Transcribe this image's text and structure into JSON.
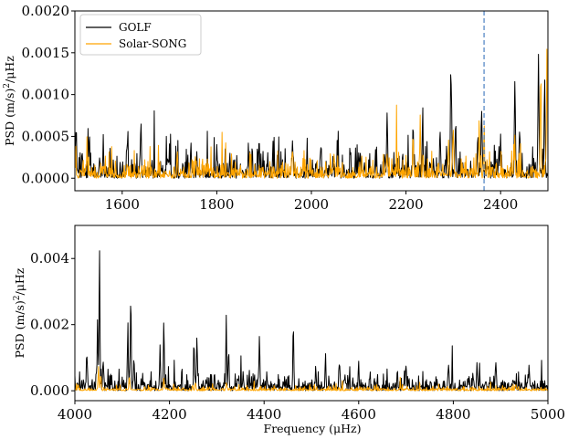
{
  "chart_data": [
    {
      "type": "line",
      "panel": "top",
      "xlabel": "",
      "ylabel": "PSD (m/s)²/μHz",
      "ylabel_parts": {
        "prefix": "PSD (m/s)",
        "sup": "2",
        "suffix": "/μHz"
      },
      "xlim": [
        1500,
        2500
      ],
      "ylim": [
        -0.00015,
        0.002
      ],
      "xticks": [
        1600,
        1800,
        2000,
        2200,
        2400
      ],
      "yticks": [
        0.0,
        0.0005,
        0.001,
        0.0015,
        0.002
      ],
      "ytick_labels": [
        "0.0000",
        "0.0005",
        "0.0010",
        "0.0015",
        "0.0020"
      ],
      "grid": false,
      "legend": {
        "placement": "top-left",
        "entries": [
          "GOLF",
          "Solar-SONG"
        ]
      },
      "vline": {
        "x": 2365,
        "color": "#4a7fc1",
        "style": "dashed"
      },
      "series": [
        {
          "name": "GOLF",
          "color": "#000000",
          "baseline_mean": 9e-05,
          "peaks": [
            [
              1502,
              0.00058
            ],
            [
              1530,
              0.00038
            ],
            [
              1560,
              0.0004
            ],
            [
              1610,
              0.00035
            ],
            [
              1640,
              0.00048
            ],
            [
              1700,
              0.00032
            ],
            [
              1745,
              0.00036
            ],
            [
              1800,
              0.00038
            ],
            [
              1890,
              0.00035
            ],
            [
              1960,
              0.00045
            ],
            [
              2020,
              0.00036
            ],
            [
              2100,
              0.0003
            ],
            [
              2160,
              0.00083
            ],
            [
              2215,
              0.0006
            ],
            [
              2235,
              0.00058
            ],
            [
              2272,
              0.00052
            ],
            [
              2295,
              0.0015
            ],
            [
              2305,
              0.00055
            ],
            [
              2352,
              0.00055
            ],
            [
              2360,
              0.00075
            ],
            [
              2400,
              0.00045
            ],
            [
              2430,
              0.00132
            ],
            [
              2440,
              0.00052
            ],
            [
              2480,
              0.0017
            ],
            [
              2493,
              0.0013
            ]
          ]
        },
        {
          "name": "Solar-SONG",
          "color": "#ffa500",
          "baseline_mean": 7e-05,
          "peaks": [
            [
              1755,
              0.00023
            ],
            [
              1960,
              0.00033
            ],
            [
              2160,
              0.0003
            ],
            [
              2215,
              0.0006
            ],
            [
              2230,
              0.00062
            ],
            [
              2290,
              0.00045
            ],
            [
              2300,
              0.00062
            ],
            [
              2355,
              0.00058
            ],
            [
              2365,
              0.0006
            ],
            [
              2430,
              0.00045
            ],
            [
              2485,
              0.00126
            ],
            [
              2498,
              0.00168
            ]
          ]
        }
      ]
    },
    {
      "type": "line",
      "panel": "bottom",
      "xlabel": "Frequency (μHz)",
      "ylabel": "PSD (m/s)²/μHz",
      "ylabel_parts": {
        "prefix": "PSD (m/s)",
        "sup": "2",
        "suffix": "/μHz"
      },
      "xlim": [
        4000,
        5000
      ],
      "ylim": [
        -0.0003,
        0.005
      ],
      "xticks": [
        4000,
        4200,
        4400,
        4600,
        4800,
        5000
      ],
      "yticks": [
        0.0,
        0.002,
        0.004
      ],
      "ytick_labels": [
        "0.000",
        "0.002",
        "0.004"
      ],
      "grid": false,
      "series": [
        {
          "name": "GOLF",
          "color": "#000000",
          "baseline_mean": 0.00015,
          "peaks": [
            [
              4025,
              0.0011
            ],
            [
              4048,
              0.0021
            ],
            [
              4052,
              0.0043
            ],
            [
              4060,
              0.0009
            ],
            [
              4112,
              0.0019
            ],
            [
              4118,
              0.0027
            ],
            [
              4125,
              0.001
            ],
            [
              4180,
              0.0013
            ],
            [
              4188,
              0.0022
            ],
            [
              4252,
              0.0012
            ],
            [
              4258,
              0.0017
            ],
            [
              4320,
              0.0022
            ],
            [
              4325,
              0.0012
            ],
            [
              4390,
              0.0016
            ],
            [
              4462,
              0.0017
            ],
            [
              4530,
              0.0008
            ],
            [
              4560,
              0.0008
            ],
            [
              4600,
              0.0007
            ],
            [
              4700,
              0.0008
            ],
            [
              4790,
              0.0008
            ],
            [
              4850,
              0.0009
            ],
            [
              4890,
              0.0008
            ],
            [
              4960,
              0.0007
            ]
          ]
        },
        {
          "name": "Solar-SONG",
          "color": "#ffa500",
          "baseline_mean": 4e-05,
          "peaks": [
            [
              4050,
              0.0007
            ],
            [
              4055,
              0.0005
            ],
            [
              4115,
              0.0005
            ],
            [
              4188,
              0.0003
            ],
            [
              4255,
              0.00025
            ],
            [
              4320,
              0.0002
            ]
          ]
        }
      ]
    }
  ]
}
